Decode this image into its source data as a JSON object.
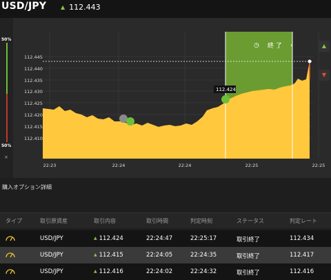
{
  "header": {
    "pair": "USD/JPY",
    "rate": "112.443",
    "rate_icon": "arrow-up-icon"
  },
  "gauge": {
    "top_pct": "50%",
    "bottom_pct": "50%",
    "close": "×"
  },
  "chart_data": {
    "type": "area",
    "y_ticks": [
      "112.445",
      "112.440",
      "112.435",
      "112.430",
      "112.425",
      "112.420",
      "112.415",
      "112.410"
    ],
    "x_ticks": [
      "22:23",
      "22:24",
      "22:24",
      "22:25",
      "22:25"
    ],
    "current_price": "112.443",
    "marker_label": "112.424",
    "end_label": "終 了",
    "series_color": "#ffc83d",
    "expiry_zone_color": "#6a9c31"
  },
  "section": {
    "title": "購入オプション詳細"
  },
  "table": {
    "headers": [
      "タイプ",
      "取引原資産",
      "取引内容",
      "取引時間",
      "判定時刻",
      "ステータス",
      "判定レート"
    ],
    "rows": [
      {
        "asset": "USD/JPY",
        "content": "112.424",
        "time": "22:24:47",
        "judge": "22:25:17",
        "status": "取引終了",
        "rate": "112.434"
      },
      {
        "asset": "USD/JPY",
        "content": "112.415",
        "time": "22:24:05",
        "judge": "22:24:35",
        "status": "取引終了",
        "rate": "112.417"
      },
      {
        "asset": "USD/JPY",
        "content": "112.416",
        "time": "22:24:02",
        "judge": "22:24:32",
        "status": "取引終了",
        "rate": "112.416"
      }
    ]
  }
}
